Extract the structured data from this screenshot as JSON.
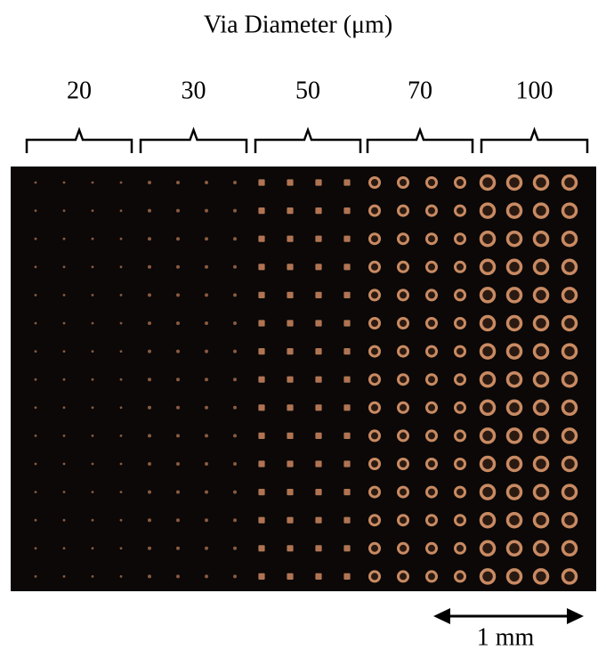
{
  "title": "Via Diameter (μm)",
  "groups": [
    {
      "label": "20"
    },
    {
      "label": "30"
    },
    {
      "label": "50"
    },
    {
      "label": "70"
    },
    {
      "label": "100"
    }
  ],
  "scale_bar": {
    "label": "1 mm"
  }
}
